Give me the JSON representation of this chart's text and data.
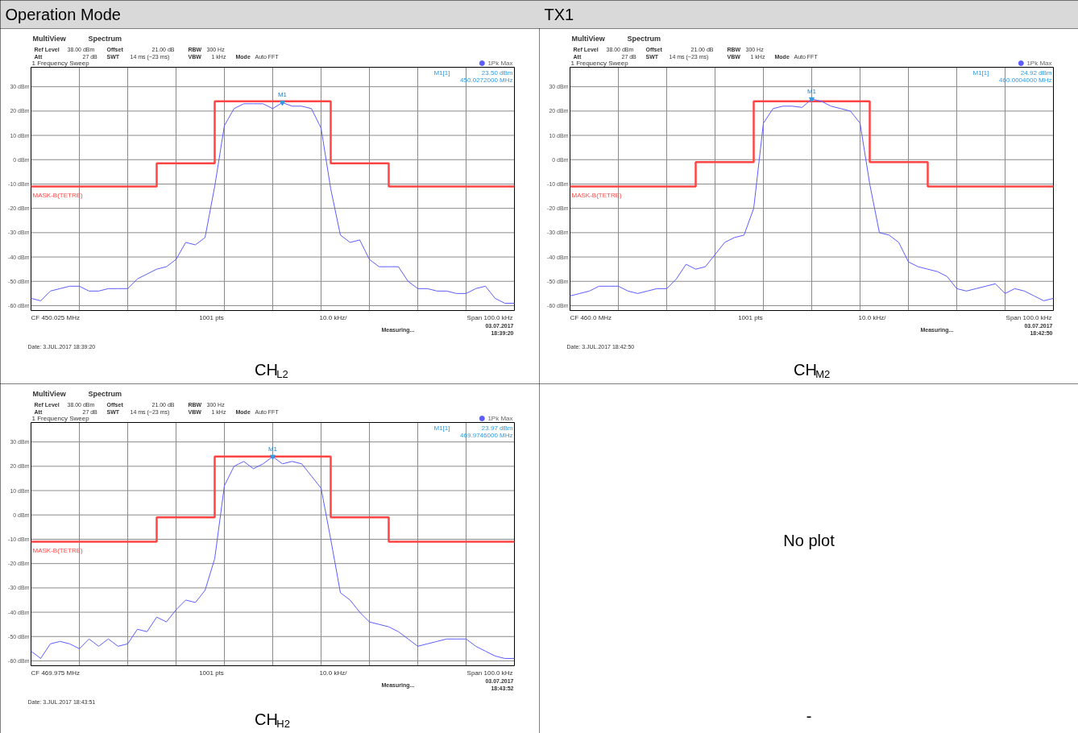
{
  "chart_data": [
    {
      "type": "line",
      "title": "Operation Mode",
      "subtitle": "CH$_{L2}$",
      "ylim": [
        -62,
        38
      ],
      "grid": true,
      "legend": "top right",
      "tick_labels": "y",
      "marker": "none",
      "line_style": "solid",
      "categories": [
        null,
        null,
        null,
        null,
        null,
        null,
        null,
        null,
        null,
        null,
        null,
        null,
        null,
        null,
        null,
        null,
        null,
        null,
        null,
        null,
        null,
        null,
        null,
        null,
        null,
        null,
        null,
        null,
        null,
        null,
        null,
        null,
        null,
        null,
        null,
        null,
        null,
        null,
        null,
        null,
        null,
        null,
        null,
        null,
        null,
        null,
        null,
        null,
        null,
        null,
        null
      ],
      "yticks": [
        {
          "value": 30,
          "label": "30 dBm"
        },
        {
          "value": 20,
          "label": "20 dBm"
        },
        {
          "value": 10,
          "label": "10 dBm"
        },
        {
          "value": 0,
          "label": "0 dBm"
        },
        {
          "value": -10,
          "label": "-10 dBm"
        },
        {
          "value": -20,
          "label": "-20 dBm"
        },
        {
          "value": -30,
          "label": "-30 dBm"
        },
        {
          "value": -40,
          "label": "-40 dBm"
        },
        {
          "value": -50,
          "label": "-50 dBm"
        },
        {
          "value": -60,
          "label": "-60 dBm"
        }
      ],
      "series": [
        {
          "name": "MASK-B(TETRE)",
          "type": "step",
          "color": "#ff4444",
          "values": [
            -11,
            -11,
            -11,
            -11,
            -11,
            -11,
            -11,
            -11,
            -11,
            -11,
            -11,
            -11,
            -11,
            -1.5,
            -1.5,
            -1.5,
            -1.5,
            -1.5,
            -1.5,
            24,
            24,
            24,
            24,
            24,
            24,
            24,
            24,
            24,
            24,
            24,
            24,
            -1.5,
            -1.5,
            -1.5,
            -1.5,
            -1.5,
            -1.5,
            -11,
            -11,
            -11,
            -11,
            -11,
            -11,
            -11,
            -11,
            -11,
            -11,
            -11,
            -11,
            -11,
            -11
          ]
        },
        {
          "name": "1Pk Max",
          "type": "line",
          "color": "#5c5cff",
          "values": [
            -57,
            -58,
            -54,
            -53,
            -52,
            -52,
            -54,
            -54,
            -53,
            -53,
            -53,
            -49,
            -47,
            -45,
            -44,
            -41,
            -34,
            -35,
            -32,
            -11,
            14,
            21,
            23,
            23,
            23,
            21,
            23.5,
            22,
            22,
            21,
            13,
            -12,
            -31,
            -34,
            -33,
            -41,
            -44,
            -44,
            -44,
            -50,
            -53,
            -53,
            -54,
            -54,
            -55,
            -55,
            -53,
            -52,
            -57,
            -59,
            -59
          ]
        }
      ],
      "annotations": [
        "MultiView",
        "Spectrum",
        "Ref Level",
        "38.00 dBm",
        "Att",
        "27 dB",
        "Offset",
        "21.00 dB",
        "SWT",
        "14 ms (~23 ms)",
        "RBW",
        "300 Hz",
        "VBW",
        "1 kHz",
        "Mode",
        "Auto FFT",
        "1 Frequency Sweep",
        "M1[1]",
        "23.50 dBm",
        "450.0272000 MHz",
        "CF 450.025 MHz",
        "1001 pts",
        "10.0 kHz/",
        "Span 100.0 kHz",
        "Measuring...",
        "03.07.2017",
        "18:39:20",
        "Date: 3.JUL.2017 18:39:20",
        {
          "text": "M1",
          "y": 23.5
        }
      ]
    },
    {
      "type": "line",
      "title": "TX1",
      "subtitle": "CH$_{M2}$",
      "ylim": [
        -62,
        38
      ],
      "grid": true,
      "legend": "top right",
      "tick_labels": "y",
      "marker": "none",
      "line_style": "solid",
      "categories": [
        null,
        null,
        null,
        null,
        null,
        null,
        null,
        null,
        null,
        null,
        null,
        null,
        null,
        null,
        null,
        null,
        null,
        null,
        null,
        null,
        null,
        null,
        null,
        null,
        null,
        null,
        null,
        null,
        null,
        null,
        null,
        null,
        null,
        null,
        null,
        null,
        null,
        null,
        null,
        null,
        null,
        null,
        null,
        null,
        null,
        null,
        null,
        null,
        null,
        null,
        null
      ],
      "yticks": [
        {
          "value": 30,
          "label": "30 dBm"
        },
        {
          "value": 20,
          "label": "20 dBm"
        },
        {
          "value": 10,
          "label": "10 dBm"
        },
        {
          "value": 0,
          "label": "0 dBm"
        },
        {
          "value": -10,
          "label": "-10 dBm"
        },
        {
          "value": -20,
          "label": "-20 dBm"
        },
        {
          "value": -30,
          "label": "-30 dBm"
        },
        {
          "value": -40,
          "label": "-40 dBm"
        },
        {
          "value": -50,
          "label": "-50 dBm"
        },
        {
          "value": -60,
          "label": "-60 dBm"
        }
      ],
      "series": [
        {
          "name": "MASK-B(TETRE)",
          "type": "step",
          "color": "#ff4444",
          "values": [
            -11,
            -11,
            -11,
            -11,
            -11,
            -11,
            -11,
            -11,
            -11,
            -11,
            -11,
            -11,
            -11,
            -1,
            -1,
            -1,
            -1,
            -1,
            -1,
            24,
            24,
            24,
            24,
            24,
            24,
            24,
            24,
            24,
            24,
            24,
            24,
            -1,
            -1,
            -1,
            -1,
            -1,
            -1,
            -11,
            -11,
            -11,
            -11,
            -11,
            -11,
            -11,
            -11,
            -11,
            -11,
            -11,
            -11,
            -11,
            -11
          ]
        },
        {
          "name": "1Pk Max",
          "type": "line",
          "color": "#5c5cff",
          "values": [
            -56,
            -55,
            -54,
            -52,
            -52,
            -52,
            -54,
            -55,
            -54,
            -53,
            -53,
            -49,
            -43,
            -45,
            -44,
            -39,
            -34,
            -32,
            -31,
            -20,
            15,
            21,
            22,
            22,
            21.5,
            24.92,
            24,
            22,
            21,
            20,
            15,
            -10,
            -30,
            -31,
            -34,
            -42,
            -44,
            -45,
            -46,
            -48,
            -53,
            -54,
            -53,
            -52,
            -51,
            -55,
            -53,
            -54,
            -56,
            -58,
            -57
          ]
        }
      ],
      "annotations": [
        "MultiView",
        "Spectrum",
        "Ref Level",
        "38.00 dBm",
        "Att",
        "27 dB",
        "Offset",
        "21.00 dB",
        "SWT",
        "14 ms (~23 ms)",
        "RBW",
        "300 Hz",
        "VBW",
        "1 kHz",
        "Mode",
        "Auto FFT",
        "1 Frequency Sweep",
        "M1[1]",
        "24.92 dBm",
        "460.0004000 MHz",
        "CF 460.0 MHz",
        "1001 pts",
        "10.0 kHz/",
        "Span 100.0 kHz",
        "Measuring...",
        "03.07.2017",
        "18:42:50",
        "Date: 3.JUL.2017 18:42:50",
        {
          "text": "M1",
          "y": 24.92
        },
        "No plot",
        "-"
      ]
    },
    {
      "type": "line",
      "subtitle": "CH$_{H2}$",
      "ylim": [
        -62,
        38
      ],
      "grid": true,
      "legend": "top right",
      "tick_labels": "y",
      "marker": "none",
      "line_style": "solid",
      "categories": [
        null,
        null,
        null,
        null,
        null,
        null,
        null,
        null,
        null,
        null,
        null,
        null,
        null,
        null,
        null,
        null,
        null,
        null,
        null,
        null,
        null,
        null,
        null,
        null,
        null,
        null,
        null,
        null,
        null,
        null,
        null,
        null,
        null,
        null,
        null,
        null,
        null,
        null,
        null,
        null,
        null,
        null,
        null,
        null,
        null,
        null,
        null,
        null,
        null,
        null,
        null
      ],
      "yticks": [
        {
          "value": 30,
          "label": "30 dBm"
        },
        {
          "value": 20,
          "label": "20 dBm"
        },
        {
          "value": 10,
          "label": "10 dBm"
        },
        {
          "value": 0,
          "label": "0 dBm"
        },
        {
          "value": -10,
          "label": "-10 dBm"
        },
        {
          "value": -20,
          "label": "-20 dBm"
        },
        {
          "value": -30,
          "label": "-30 dBm"
        },
        {
          "value": -40,
          "label": "-40 dBm"
        },
        {
          "value": -50,
          "label": "-50 dBm"
        },
        {
          "value": -60,
          "label": "-60 dBm"
        }
      ],
      "series": [
        {
          "name": "MASK-B(TETRE)",
          "type": "step",
          "color": "#ff4444",
          "values": [
            -11,
            -11,
            -11,
            -11,
            -11,
            -11,
            -11,
            -11,
            -11,
            -11,
            -11,
            -11,
            -11,
            -1,
            -1,
            -1,
            -1,
            -1,
            -1,
            24,
            24,
            24,
            24,
            24,
            24,
            24,
            24,
            24,
            24,
            24,
            24,
            -1,
            -1,
            -1,
            -1,
            -1,
            -1,
            -11,
            -11,
            -11,
            -11,
            -11,
            -11,
            -11,
            -11,
            -11,
            -11,
            -11,
            -11,
            -11,
            -11
          ]
        },
        {
          "name": "1Pk Max",
          "type": "line",
          "color": "#5c5cff",
          "values": [
            -56,
            -59,
            -53,
            -52,
            -53,
            -55,
            -51,
            -54,
            -51,
            -54,
            -53,
            -47,
            -48,
            -42,
            -44,
            -39,
            -35,
            -36,
            -31,
            -18,
            12,
            20,
            22,
            19,
            21,
            23.97,
            21,
            22,
            21,
            16,
            11,
            -10,
            -32,
            -35,
            -40,
            -44,
            -45,
            -46,
            -48,
            -51,
            -54,
            -53,
            -52,
            -51,
            -51,
            -51,
            -54,
            -56,
            -58,
            -59,
            -59
          ]
        }
      ],
      "annotations": [
        "MultiView",
        "Spectrum",
        "Ref Level",
        "38.00 dBm",
        "Att",
        "27 dB",
        "Offset",
        "21.00 dB",
        "SWT",
        "14 ms (~23 ms)",
        "RBW",
        "300 Hz",
        "VBW",
        "1 kHz",
        "Mode",
        "Auto FFT",
        "1 Frequency Sweep",
        "M1[1]",
        "23.97 dBm",
        "469.9746000 MHz",
        "CF 469.975 MHz",
        "1001 pts",
        "10.0 kHz/",
        "Span 100.0 kHz",
        "Measuring...",
        "03.07.2017",
        "18:43:52",
        "Date: 3.JUL.2017 18:43:51",
        {
          "text": "M1",
          "y": 23.97
        }
      ]
    }
  ]
}
